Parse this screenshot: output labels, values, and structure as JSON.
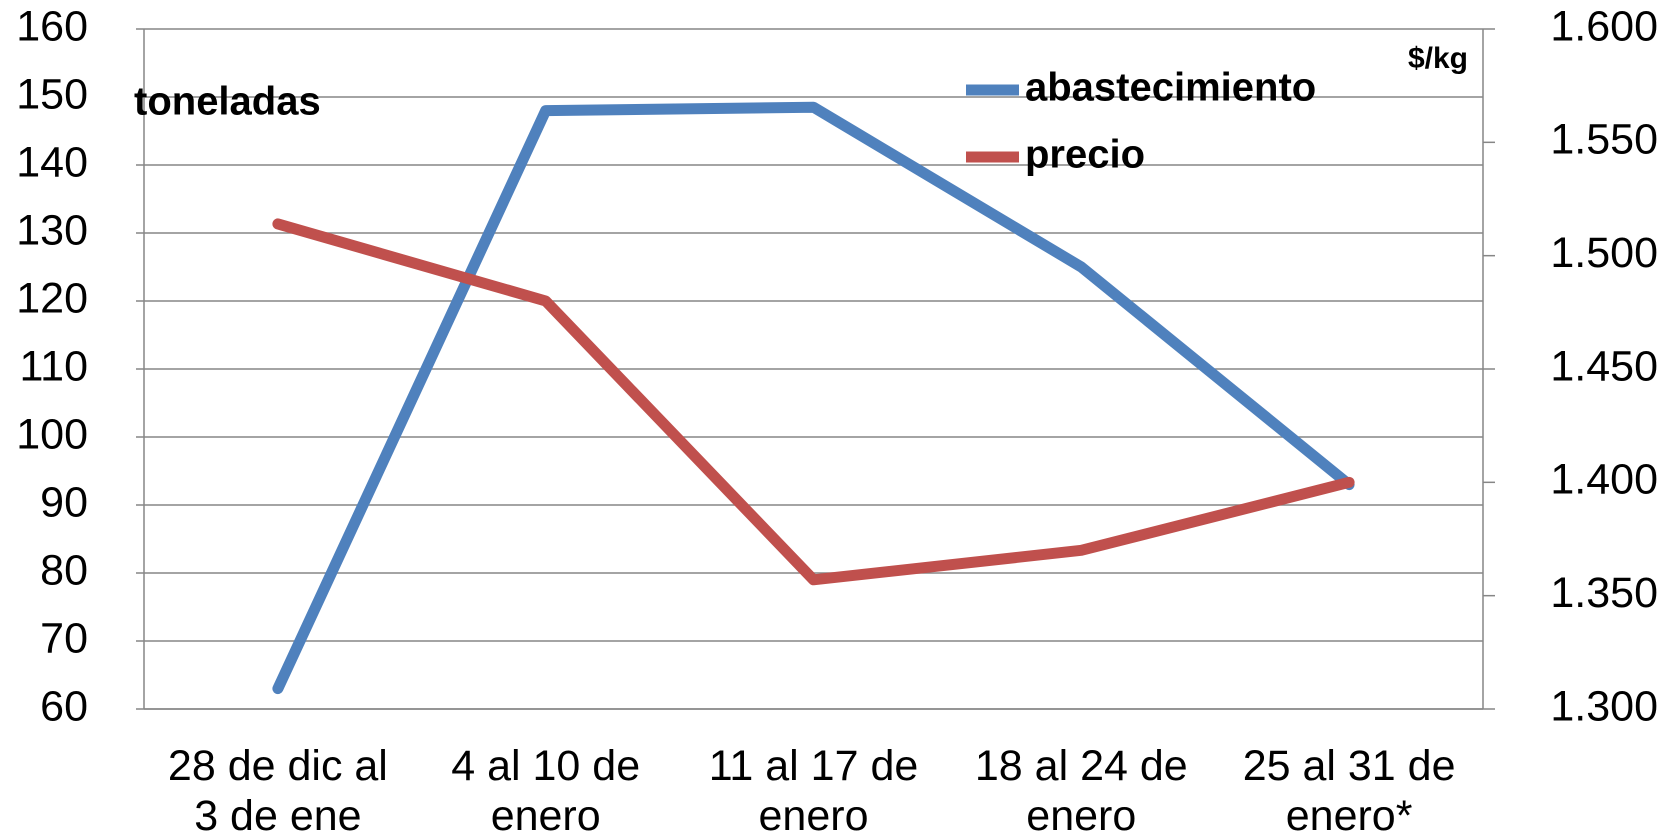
{
  "chart_data": {
    "type": "line",
    "categories": [
      "28 de dic al 3 de ene",
      "4 al 10 de enero",
      "11 al 17 de enero",
      "18 al 24 de enero",
      "25 al 31 de enero*"
    ],
    "series": [
      {
        "name": "abastecimiento",
        "color": "#4f81bd",
        "values": [
          63,
          148,
          148.5,
          125,
          93
        ]
      },
      {
        "name": "precio",
        "color": "#c0504d",
        "axis": "y2",
        "values": [
          1.514,
          1.48,
          1.357,
          1.37,
          1.4
        ]
      }
    ],
    "ylim": [
      60,
      160
    ],
    "yticks": [
      60,
      70,
      80,
      90,
      100,
      110,
      120,
      130,
      140,
      150,
      160
    ],
    "y2lim": [
      1.3,
      1.6
    ],
    "y2ticks": [
      {
        "value": 1.3,
        "label": "1.300"
      },
      {
        "value": 1.35,
        "label": "1.350"
      },
      {
        "value": 1.4,
        "label": "1.400"
      },
      {
        "value": 1.45,
        "label": "1.450"
      },
      {
        "value": 1.5,
        "label": "1.500"
      },
      {
        "value": 1.55,
        "label": "1.550"
      },
      {
        "value": 1.6,
        "label": "1.600"
      }
    ],
    "annotations": [
      "toneladas",
      "$/kg"
    ],
    "grid": true,
    "legend": "top-right"
  }
}
